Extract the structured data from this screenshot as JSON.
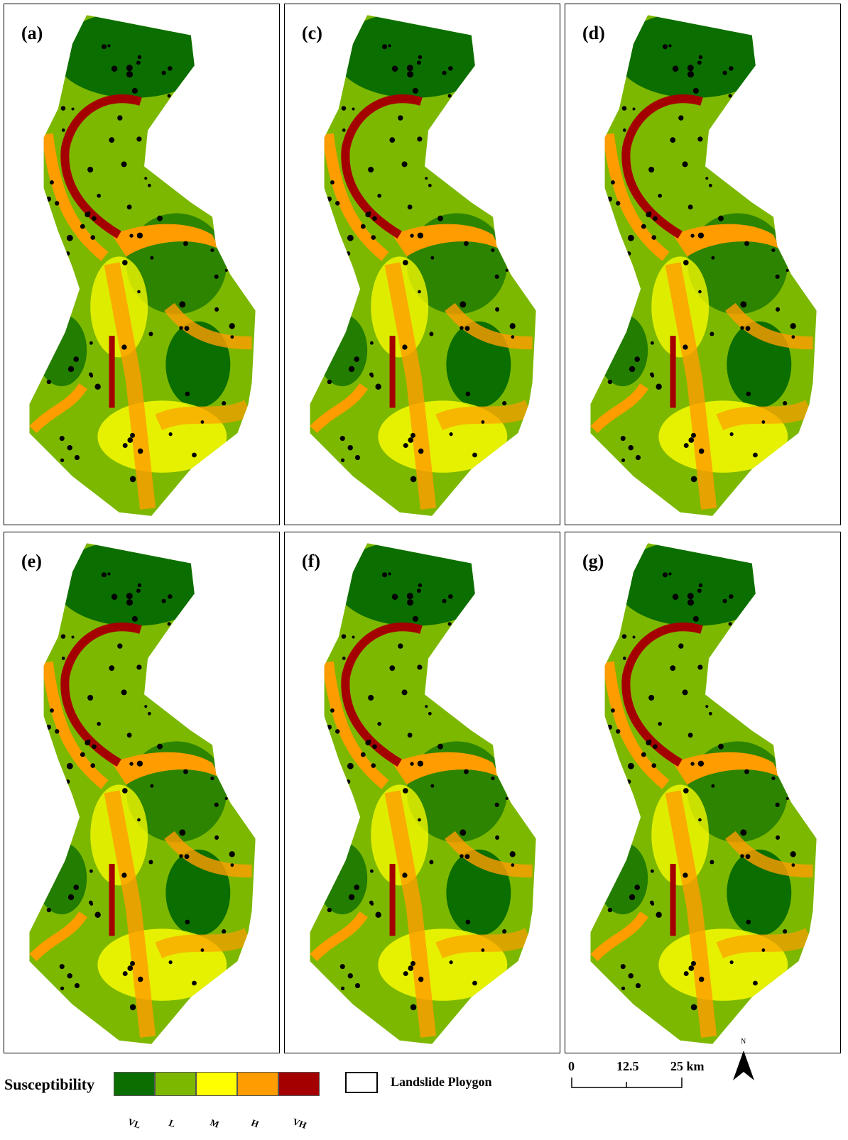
{
  "panels": [
    {
      "label": "(a)"
    },
    {
      "label": "(c)"
    },
    {
      "label": "(d)"
    },
    {
      "label": "(e)"
    },
    {
      "label": "(f)"
    },
    {
      "label": "(g)"
    }
  ],
  "legend": {
    "title": "Susceptibility",
    "classes": [
      {
        "label": "VL",
        "color": "#0b6e00"
      },
      {
        "label": "L",
        "color": "#7db800"
      },
      {
        "label": "M",
        "color": "#ffff00"
      },
      {
        "label": "H",
        "color": "#ff9c00"
      },
      {
        "label": "VH",
        "color": "#a50000"
      }
    ],
    "polygon_label": "Landslide Ploygon"
  },
  "scale_bar": {
    "ticks": [
      "0",
      "12.5",
      "25 km"
    ]
  },
  "north": "N"
}
